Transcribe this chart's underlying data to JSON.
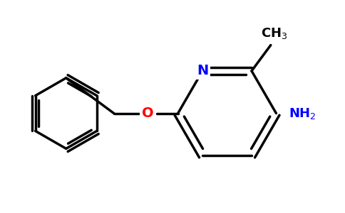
{
  "background_color": "#ffffff",
  "bond_color": "#000000",
  "bond_width": 2.5,
  "n_color": "#0000ff",
  "o_color": "#ff0000",
  "nh2_color": "#0000ff",
  "text_color": "#000000",
  "figsize": [
    4.84,
    3.0
  ],
  "dpi": 100
}
